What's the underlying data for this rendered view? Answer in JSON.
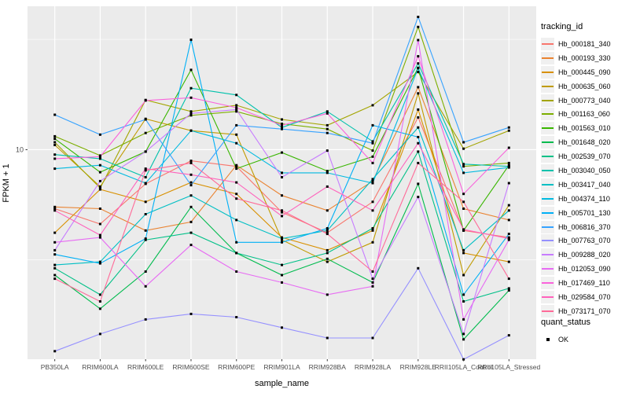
{
  "figure": {
    "background": "#FFFFFF",
    "panel_background": "#EBEBEB",
    "grid_color": "#FFFFFF",
    "tick_color": "#333333",
    "tick_label_color": "#4D4D4D",
    "axis_title_color": "#000000"
  },
  "legend": {
    "tracking_title": "tracking_id",
    "quant_title": "quant_status",
    "quant_items": [
      {
        "label": "OK",
        "marker": "black-square"
      }
    ]
  },
  "chart_data": {
    "type": "line",
    "title": "",
    "xlabel": "sample_name",
    "ylabel": "FPKM + 1",
    "x_categories": [
      "PB350LA",
      "RRIM600LA",
      "RRIM600LE",
      "RRIM600SE",
      "RRIM600PE",
      "RRIM901LA",
      "RRIM928BA",
      "RRIM928LA",
      "RRIM928LE",
      "RRII105LA_Control",
      "RRII105LA_Stressed"
    ],
    "y_scale": "log10",
    "y_tick_values": [
      10
    ],
    "y_tick_labels": [
      "10"
    ],
    "y_minor_log_breaks": [
      0.5,
      1.5
    ],
    "ylog_range": [
      0.05,
      1.65
    ],
    "grid": "on",
    "legend_position": "right",
    "point_shape": "square",
    "point_color": "#000000",
    "series": [
      {
        "name": "Hb_000181_340",
        "color": "#F8766D",
        "values": [
          5.4,
          4.6,
          7.0,
          8.9,
          8.4,
          5.2,
          4.2,
          5.8,
          14.0,
          4.3,
          4.0
        ]
      },
      {
        "name": "Hb_000193_330",
        "color": "#EA8331",
        "values": [
          5.5,
          5.4,
          4.3,
          4.7,
          8.5,
          6.2,
          5.3,
          7.2,
          19.2,
          5.4,
          4.8
        ]
      },
      {
        "name": "Hb_000445_090",
        "color": "#D89000",
        "values": [
          4.2,
          6.6,
          5.8,
          7.1,
          6.3,
          4.0,
          3.5,
          4.3,
          15.2,
          3.4,
          3.1
        ]
      },
      {
        "name": "Hb_000635_060",
        "color": "#C09B00",
        "values": [
          10.5,
          6.8,
          13.8,
          12.2,
          11.7,
          3.9,
          3.1,
          3.8,
          18.0,
          2.7,
          5.6
        ]
      },
      {
        "name": "Hb_000773_040",
        "color": "#A3A500",
        "values": [
          10.8,
          6.7,
          16.8,
          14.9,
          15.9,
          13.7,
          12.9,
          15.9,
          22.5,
          10.1,
          12.2
        ]
      },
      {
        "name": "Hb_001163_060",
        "color": "#7CAE00",
        "values": [
          11.5,
          9.4,
          11.9,
          14.3,
          14.9,
          13.1,
          12.4,
          9.9,
          36.0,
          8.4,
          8.7
        ]
      },
      {
        "name": "Hb_001563_010",
        "color": "#39B600",
        "values": [
          11.2,
          7.9,
          9.8,
          23.0,
          8.2,
          9.7,
          8.0,
          9.3,
          23.5,
          4.3,
          8.5
        ]
      },
      {
        "name": "Hb_001648_020",
        "color": "#00BB4E",
        "values": [
          2.7,
          1.9,
          2.8,
          5.5,
          3.4,
          2.7,
          3.2,
          2.5,
          7.0,
          1.38,
          2.3
        ]
      },
      {
        "name": "Hb_002539_070",
        "color": "#00C087",
        "values": [
          2.9,
          2.2,
          3.9,
          4.2,
          3.4,
          3.0,
          3.4,
          4.4,
          9.8,
          2.05,
          2.35
        ]
      },
      {
        "name": "Hb_003040_050",
        "color": "#00C1AB",
        "values": [
          9.5,
          9.1,
          7.5,
          19.0,
          17.7,
          12.6,
          14.9,
          10.9,
          24.6,
          8.6,
          8.4
        ]
      },
      {
        "name": "Hb_003417_040",
        "color": "#00BFC4",
        "values": [
          3.0,
          3.1,
          5.1,
          6.2,
          4.8,
          3.95,
          4.3,
          7.35,
          12.6,
          3.5,
          5.3
        ]
      },
      {
        "name": "Hb_004374_110",
        "color": "#00BAE0",
        "values": [
          8.2,
          8.5,
          7.05,
          12.2,
          10.7,
          7.85,
          7.85,
          7.05,
          23.4,
          7.85,
          8.3
        ]
      },
      {
        "name": "Hb_005701_130",
        "color": "#00B0F6",
        "values": [
          3.35,
          3.05,
          3.95,
          31.5,
          3.8,
          3.8,
          4.4,
          12.9,
          11.4,
          2.2,
          4.15
        ]
      },
      {
        "name": "Hb_006816_370",
        "color": "#35A2FF",
        "values": [
          14.4,
          11.7,
          13.7,
          6.9,
          12.9,
          12.4,
          11.9,
          10.7,
          40.0,
          10.8,
          12.6
        ]
      },
      {
        "name": "Hb_007763_070",
        "color": "#9590FF",
        "values": [
          1.22,
          1.46,
          1.7,
          1.8,
          1.74,
          1.56,
          1.4,
          1.4,
          2.9,
          1.12,
          1.44
        ]
      },
      {
        "name": "Hb_009288_020",
        "color": "#C77CFF",
        "values": [
          3.5,
          7.2,
          9.8,
          14.6,
          15.2,
          7.5,
          9.9,
          2.6,
          6.1,
          1.46,
          7.05
        ]
      },
      {
        "name": "Hb_012053_090",
        "color": "#E76BF3",
        "values": [
          3.8,
          4.0,
          2.4,
          3.7,
          2.8,
          2.5,
          2.2,
          2.4,
          31.4,
          1.7,
          3.9
        ]
      },
      {
        "name": "Hb_017469_110",
        "color": "#FA62DB",
        "values": [
          9.1,
          9.3,
          16.7,
          17.2,
          15.5,
          12.9,
          14.6,
          8.7,
          26.5,
          6.3,
          10.2
        ]
      },
      {
        "name": "Hb_029584_070",
        "color": "#FF62BC",
        "values": [
          5.3,
          4.1,
          8.2,
          7.7,
          7.1,
          5.0,
          6.8,
          5.3,
          10.7,
          4.35,
          3.95
        ]
      },
      {
        "name": "Hb_073171_070",
        "color": "#FF6A98",
        "values": [
          2.6,
          2.05,
          8.05,
          8.7,
          6.0,
          5.3,
          4.15,
          2.8,
          8.7,
          5.8,
          2.6
        ]
      }
    ]
  }
}
